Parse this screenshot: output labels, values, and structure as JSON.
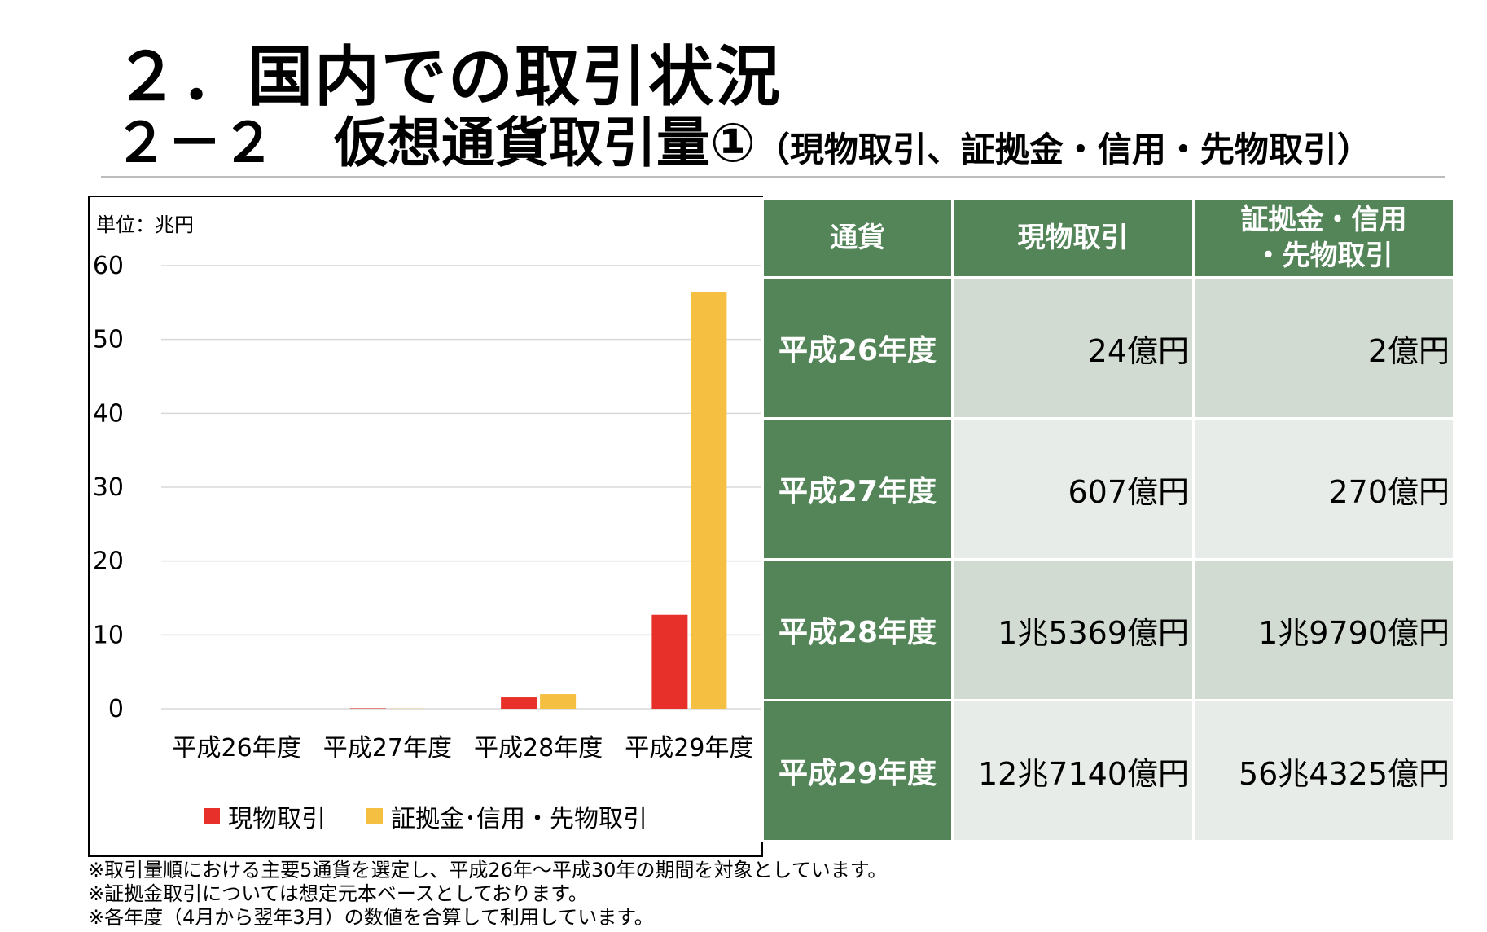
{
  "header": {
    "title1": "２．国内での取引状況",
    "title2_num": "２－２",
    "title2_main": "仮想通貨取引量①",
    "title2_sub": "（現物取引、証拠金・信用・先物取引）"
  },
  "chart_data": {
    "type": "bar",
    "unit_label": "単位：兆円",
    "categories": [
      "平成26年度",
      "平成27年度",
      "平成28年度",
      "平成29年度"
    ],
    "series": [
      {
        "name": "現物取引",
        "values": [
          0.0024,
          0.0607,
          1.5369,
          12.714
        ],
        "color": "#e8302a"
      },
      {
        "name": "証拠金･信用・先物取引",
        "values": [
          0.0002,
          0.027,
          1.979,
          56.4325
        ],
        "color": "#f5c042"
      }
    ],
    "yticks": [
      0,
      10,
      20,
      30,
      40,
      50,
      60
    ],
    "ylim": [
      0,
      60
    ],
    "grid": true,
    "legend_position": "bottom"
  },
  "table": {
    "headers": [
      "通貨",
      "現物取引",
      "証拠金・信用\n・先物取引"
    ],
    "rows": [
      {
        "label": "平成26年度",
        "spot": "24億円",
        "margin": "2億円"
      },
      {
        "label": "平成27年度",
        "spot": "607億円",
        "margin": "270億円"
      },
      {
        "label": "平成28年度",
        "spot": "1兆5369億円",
        "margin": "1兆9790億円"
      },
      {
        "label": "平成29年度",
        "spot": "12兆7140億円",
        "margin": "56兆4325億円"
      }
    ]
  },
  "notes": [
    "※取引量順における主要5通貨を選定し、平成26年～平成30年の期間を対象としています。",
    "※証拠金取引については想定元本ベースとしております。",
    "※各年度（4月から翌年3月）の数値を合算して利用しています。"
  ],
  "colors": {
    "table_header": "#548559",
    "row_odd": "#d1dbd1",
    "row_even": "#e8ece8"
  }
}
